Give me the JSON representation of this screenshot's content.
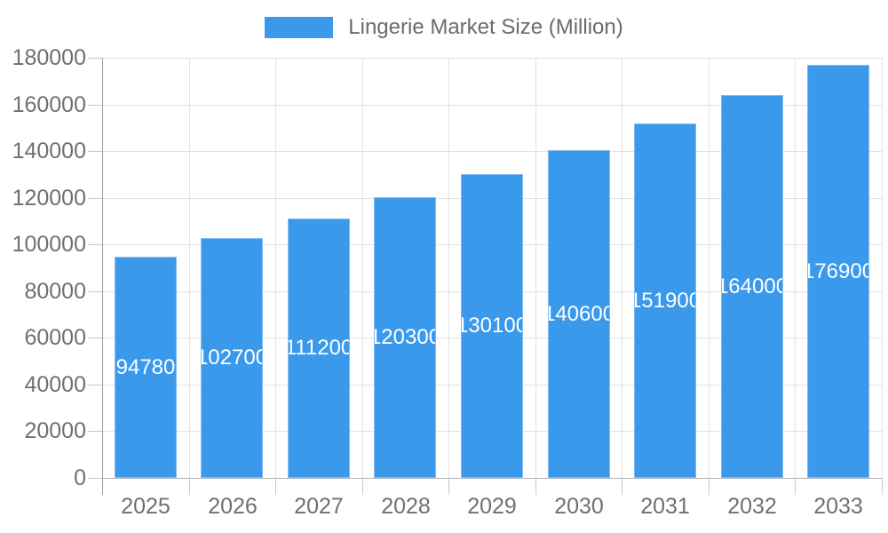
{
  "chart_data": {
    "type": "bar",
    "title": "Lingerie Market Size (Million)",
    "legend": {
      "position": "top",
      "entries": [
        "Lingerie Market Size (Million)"
      ]
    },
    "categories": [
      "2025",
      "2026",
      "2027",
      "2028",
      "2029",
      "2030",
      "2031",
      "2032",
      "2033"
    ],
    "values": [
      94780,
      102700,
      111200,
      120300,
      130100,
      140600,
      151900,
      164000,
      176900
    ],
    "bar_value_labels": [
      "94780",
      "102700",
      "111200",
      "120300",
      "130100",
      "140600",
      "151900",
      "164000",
      "176900"
    ],
    "xlabel": "",
    "ylabel": "",
    "ylim": [
      0,
      180000
    ],
    "y_ticks": [
      0,
      20000,
      40000,
      60000,
      80000,
      100000,
      120000,
      140000,
      160000,
      180000
    ],
    "y_tick_labels": [
      "0",
      "20000",
      "40000",
      "60000",
      "80000",
      "100000",
      "120000",
      "140000",
      "160000",
      "180000"
    ],
    "grid": true,
    "colors": {
      "bar": "#3b99ec",
      "bar_label_text": "#ffffff",
      "axis_text": "#707070",
      "legend_text": "#6b6b6b",
      "gridline": "#e2e2e2",
      "baseline": "#b5b5b5",
      "axis_line": "#9e9e9e",
      "tick": "#c9c9c9",
      "background": "#ffffff"
    }
  }
}
